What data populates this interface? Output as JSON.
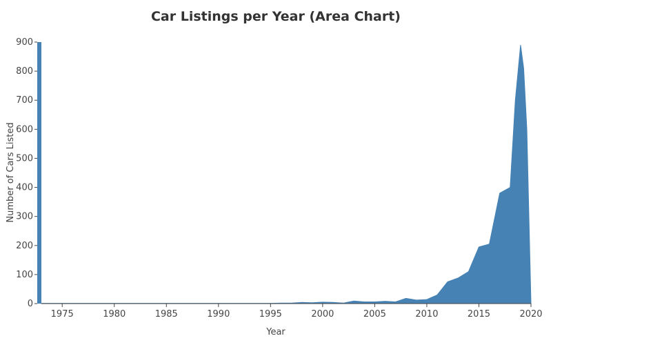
{
  "chart_data": {
    "type": "area",
    "title": "Car Listings per Year (Area Chart)",
    "xlabel": "Year",
    "ylabel": "Number of Cars Listed",
    "xlim": [
      1973,
      2020
    ],
    "ylim": [
      0,
      900
    ],
    "x_ticks": [
      1975,
      1980,
      1985,
      1990,
      1995,
      2000,
      2005,
      2010,
      2015,
      2020
    ],
    "y_ticks": [
      0,
      100,
      200,
      300,
      400,
      500,
      600,
      700,
      800,
      900
    ],
    "series": [
      {
        "color": "#4682b4",
        "x": [
          1973,
          1974,
          1975,
          1976,
          1977,
          1978,
          1979,
          1980,
          1981,
          1982,
          1983,
          1984,
          1985,
          1986,
          1987,
          1988,
          1989,
          1990,
          1991,
          1992,
          1993,
          1994,
          1995,
          1996,
          1997,
          1998,
          1999,
          2000,
          2001,
          2002,
          2003,
          2004,
          2005,
          2006,
          2007,
          2008,
          2009,
          2010,
          2011,
          2012,
          2013,
          2014,
          2015,
          2016,
          2017,
          2018,
          2018.5,
          2019,
          2019.3,
          2019.6,
          2020
        ],
        "y": [
          1,
          1,
          1,
          1,
          1,
          1,
          1,
          1,
          1,
          1,
          1,
          1,
          1,
          1,
          1,
          1,
          1,
          1,
          1,
          1,
          1,
          1,
          1,
          2,
          2,
          4,
          3,
          5,
          4,
          2,
          9,
          6,
          6,
          8,
          6,
          18,
          12,
          14,
          30,
          75,
          88,
          110,
          195,
          205,
          380,
          400,
          700,
          890,
          810,
          600,
          0
        ]
      }
    ]
  }
}
